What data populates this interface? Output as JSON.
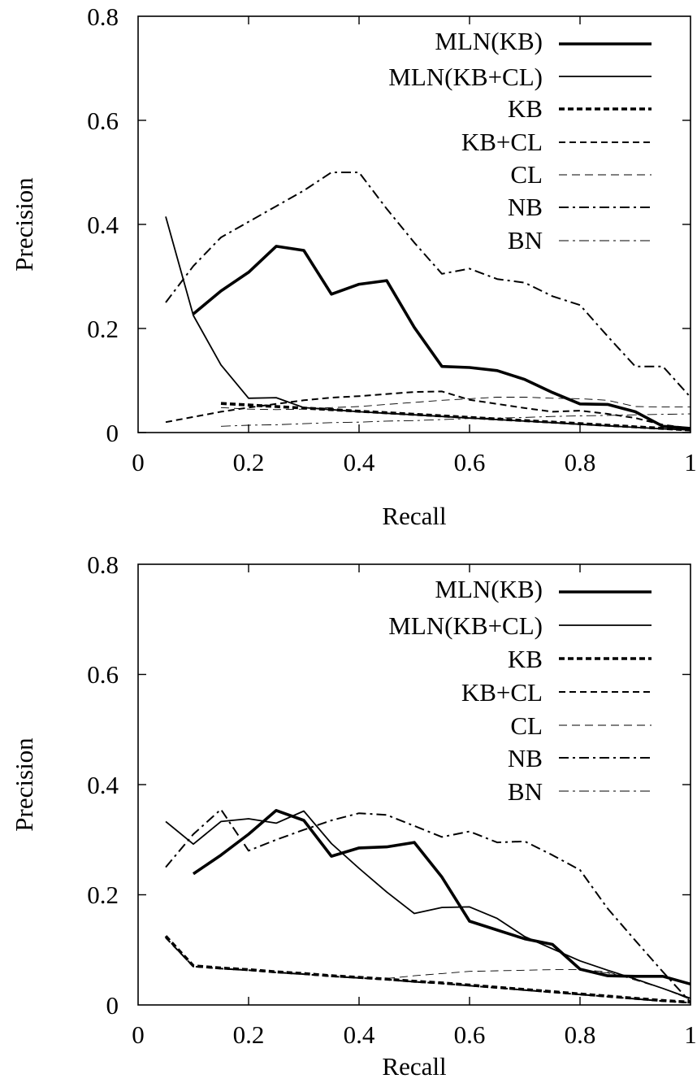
{
  "chart_data": [
    {
      "type": "line",
      "xlabel": "Recall",
      "ylabel": "Precision",
      "xlim": [
        0,
        1
      ],
      "ylim": [
        0,
        0.8
      ],
      "xticks": [
        0,
        0.2,
        0.4,
        0.6,
        0.8,
        1
      ],
      "xtick_labels": [
        "0",
        "0.2",
        "0.4",
        "0.6",
        "0.8",
        "1"
      ],
      "yticks": [
        0,
        0.2,
        0.4,
        0.6,
        0.8
      ],
      "ytick_labels": [
        "0",
        "0.2",
        "0.4",
        "0.6",
        "0.8"
      ],
      "grid": false,
      "legend_position": "top-right",
      "series": [
        {
          "name": "MLN(KB)",
          "style": "thick-solid",
          "x": [
            0.1,
            0.15,
            0.2,
            0.25,
            0.3,
            0.35,
            0.4,
            0.45,
            0.5,
            0.55,
            0.6,
            0.65,
            0.7,
            0.75,
            0.8,
            0.85,
            0.9,
            0.95,
            1.0
          ],
          "y": [
            0.228,
            0.272,
            0.308,
            0.358,
            0.35,
            0.266,
            0.285,
            0.292,
            0.202,
            0.127,
            0.125,
            0.119,
            0.102,
            0.077,
            0.055,
            0.054,
            0.04,
            0.012,
            0.008
          ]
        },
        {
          "name": "MLN(KB+CL)",
          "style": "solid",
          "x": [
            0.05,
            0.1,
            0.15,
            0.2,
            0.25,
            0.3,
            0.35,
            0.4,
            0.45,
            0.5,
            0.55,
            0.6,
            0.65,
            0.7,
            0.75,
            0.8,
            0.85,
            0.9,
            0.95,
            1.0
          ],
          "y": [
            0.415,
            0.225,
            0.13,
            0.066,
            0.067,
            0.048,
            0.044,
            0.04,
            0.037,
            0.034,
            0.031,
            0.028,
            0.025,
            0.022,
            0.019,
            0.016,
            0.013,
            0.01,
            0.007,
            0.005
          ]
        },
        {
          "name": "KB",
          "style": "thick-dashed",
          "x": [
            0.15,
            0.2,
            0.25,
            0.3,
            0.35,
            0.4,
            0.45,
            0.5,
            0.55,
            0.6,
            0.65,
            0.7,
            0.75,
            0.8,
            0.85,
            0.9,
            0.95,
            1.0
          ],
          "y": [
            0.056,
            0.053,
            0.05,
            0.047,
            0.044,
            0.041,
            0.038,
            0.035,
            0.032,
            0.029,
            0.026,
            0.023,
            0.02,
            0.017,
            0.014,
            0.011,
            0.008,
            0.005
          ]
        },
        {
          "name": "KB+CL",
          "style": "dashed",
          "x": [
            0.05,
            0.1,
            0.15,
            0.2,
            0.25,
            0.3,
            0.35,
            0.4,
            0.45,
            0.5,
            0.55,
            0.6,
            0.65,
            0.7,
            0.75,
            0.8,
            0.85,
            0.9,
            0.95,
            1.0
          ],
          "y": [
            0.02,
            0.03,
            0.04,
            0.048,
            0.055,
            0.062,
            0.067,
            0.07,
            0.074,
            0.078,
            0.079,
            0.063,
            0.055,
            0.047,
            0.04,
            0.042,
            0.036,
            0.028,
            0.015,
            0.008
          ]
        },
        {
          "name": "CL",
          "style": "thin-dashed",
          "x": [
            0.15,
            0.2,
            0.25,
            0.3,
            0.35,
            0.4,
            0.45,
            0.5,
            0.55,
            0.6,
            0.65,
            0.7,
            0.75,
            0.8,
            0.85,
            0.9,
            0.95,
            1.0
          ],
          "y": [
            0.048,
            0.045,
            0.044,
            0.045,
            0.048,
            0.05,
            0.054,
            0.058,
            0.062,
            0.065,
            0.068,
            0.068,
            0.066,
            0.065,
            0.062,
            0.05,
            0.049,
            0.049
          ]
        },
        {
          "name": "NB",
          "style": "dash-dot",
          "x": [
            0.05,
            0.1,
            0.15,
            0.2,
            0.25,
            0.3,
            0.35,
            0.4,
            0.45,
            0.5,
            0.55,
            0.6,
            0.65,
            0.7,
            0.75,
            0.8,
            0.85,
            0.9,
            0.95,
            1.0
          ],
          "y": [
            0.25,
            0.32,
            0.375,
            0.405,
            0.435,
            0.465,
            0.5,
            0.5,
            0.43,
            0.365,
            0.305,
            0.315,
            0.295,
            0.288,
            0.262,
            0.245,
            0.185,
            0.127,
            0.127,
            0.068
          ]
        },
        {
          "name": "BN",
          "style": "thin-dash-dot",
          "x": [
            0.15,
            0.2,
            0.25,
            0.3,
            0.35,
            0.4,
            0.45,
            0.5,
            0.55,
            0.6,
            0.65,
            0.7,
            0.75,
            0.8,
            0.85,
            0.9,
            0.95,
            1.0
          ],
          "y": [
            0.012,
            0.014,
            0.015,
            0.017,
            0.019,
            0.02,
            0.022,
            0.023,
            0.025,
            0.027,
            0.028,
            0.029,
            0.031,
            0.032,
            0.033,
            0.034,
            0.035,
            0.036
          ]
        }
      ]
    },
    {
      "type": "line",
      "xlabel": "Recall",
      "ylabel": "Precision",
      "xlim": [
        0,
        1
      ],
      "ylim": [
        0,
        0.8
      ],
      "xticks": [
        0,
        0.2,
        0.4,
        0.6,
        0.8,
        1
      ],
      "xtick_labels": [
        "0",
        "0.2",
        "0.4",
        "0.6",
        "0.8",
        "1"
      ],
      "yticks": [
        0,
        0.2,
        0.4,
        0.6,
        0.8
      ],
      "ytick_labels": [
        "0",
        "0.2",
        "0.4",
        "0.6",
        "0.8"
      ],
      "grid": false,
      "legend_position": "top-right",
      "series": [
        {
          "name": "MLN(KB)",
          "style": "thick-solid",
          "x": [
            0.1,
            0.15,
            0.2,
            0.25,
            0.3,
            0.35,
            0.4,
            0.45,
            0.5,
            0.55,
            0.6,
            0.65,
            0.7,
            0.75,
            0.8,
            0.85,
            0.9,
            0.95,
            1.0
          ],
          "y": [
            0.238,
            0.272,
            0.31,
            0.353,
            0.335,
            0.27,
            0.285,
            0.287,
            0.295,
            0.232,
            0.152,
            0.136,
            0.12,
            0.11,
            0.065,
            0.053,
            0.052,
            0.052,
            0.038
          ]
        },
        {
          "name": "MLN(KB+CL)",
          "style": "solid",
          "x": [
            0.05,
            0.1,
            0.15,
            0.2,
            0.25,
            0.3,
            0.35,
            0.4,
            0.45,
            0.5,
            0.55,
            0.6,
            0.65,
            0.7,
            0.75,
            0.8,
            0.85,
            0.9,
            0.95,
            1.0
          ],
          "y": [
            0.333,
            0.292,
            0.333,
            0.338,
            0.33,
            0.352,
            0.293,
            0.248,
            0.205,
            0.166,
            0.177,
            0.178,
            0.157,
            0.124,
            0.102,
            0.08,
            0.063,
            0.047,
            0.03,
            0.012
          ]
        },
        {
          "name": "KB",
          "style": "thick-dashed",
          "x": [
            0.05,
            0.1,
            0.15,
            0.2,
            0.25,
            0.3,
            0.35,
            0.4,
            0.45,
            0.5,
            0.55,
            0.6,
            0.65,
            0.7,
            0.75,
            0.8,
            0.85,
            0.9,
            0.95,
            1.0
          ],
          "y": [
            0.125,
            0.071,
            0.067,
            0.064,
            0.06,
            0.057,
            0.053,
            0.05,
            0.047,
            0.043,
            0.04,
            0.036,
            0.032,
            0.028,
            0.024,
            0.02,
            0.016,
            0.012,
            0.008,
            0.005
          ]
        },
        {
          "name": "KB+CL",
          "style": "dashed",
          "x": [
            0.05,
            0.1,
            0.15,
            0.2,
            0.25,
            0.3,
            0.35,
            0.4,
            0.45,
            0.5,
            0.55,
            0.6,
            0.65,
            0.7,
            0.75,
            0.8,
            0.85,
            0.9,
            0.95,
            1.0
          ],
          "y": [
            0.122,
            0.07,
            0.066,
            0.063,
            0.059,
            0.056,
            0.052,
            0.049,
            0.046,
            0.042,
            0.039,
            0.035,
            0.031,
            0.027,
            0.023,
            0.019,
            0.015,
            0.011,
            0.007,
            0.004
          ]
        },
        {
          "name": "CL",
          "style": "thin-dashed",
          "x": [
            0.45,
            0.5,
            0.55,
            0.6,
            0.65,
            0.7,
            0.75,
            0.8,
            0.85,
            0.9,
            0.95,
            1.0
          ],
          "y": [
            0.048,
            0.053,
            0.057,
            0.061,
            0.062,
            0.063,
            0.064,
            0.064,
            0.06,
            0.045,
            0.03,
            0.01
          ]
        },
        {
          "name": "NB",
          "style": "dash-dot",
          "x": [
            0.05,
            0.1,
            0.15,
            0.2,
            0.25,
            0.3,
            0.35,
            0.4,
            0.45,
            0.5,
            0.55,
            0.6,
            0.65,
            0.7,
            0.75,
            0.8,
            0.85,
            0.9,
            0.95,
            1.0
          ],
          "y": [
            0.25,
            0.31,
            0.355,
            0.28,
            0.3,
            0.318,
            0.335,
            0.348,
            0.345,
            0.325,
            0.305,
            0.315,
            0.295,
            0.297,
            0.272,
            0.245,
            0.175,
            0.117,
            0.06,
            0.005
          ]
        },
        {
          "name": "BN",
          "style": "thin-dash-dot",
          "x": [
            0.8,
            0.85,
            0.9,
            0.95,
            1.0
          ],
          "y": [
            0.063,
            0.058,
            0.048,
            0.03,
            0.01
          ]
        }
      ]
    }
  ]
}
